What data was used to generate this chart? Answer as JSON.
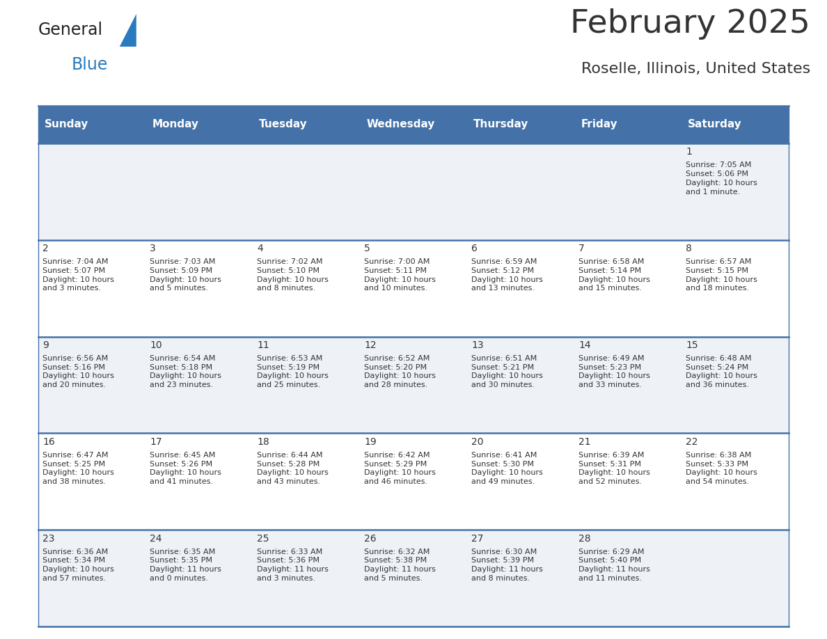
{
  "title": "February 2025",
  "subtitle": "Roselle, Illinois, United States",
  "days_of_week": [
    "Sunday",
    "Monday",
    "Tuesday",
    "Wednesday",
    "Thursday",
    "Friday",
    "Saturday"
  ],
  "header_bg": "#4472a8",
  "header_text_color": "#ffffff",
  "row_bg_odd": "#eef2f7",
  "row_bg_even": "#ffffff",
  "separator_color": "#4472a8",
  "text_color": "#333333",
  "calendar_data": [
    [
      "",
      "",
      "",
      "",
      "",
      "",
      "1\nSunrise: 7:05 AM\nSunset: 5:06 PM\nDaylight: 10 hours\nand 1 minute."
    ],
    [
      "2\nSunrise: 7:04 AM\nSunset: 5:07 PM\nDaylight: 10 hours\nand 3 minutes.",
      "3\nSunrise: 7:03 AM\nSunset: 5:09 PM\nDaylight: 10 hours\nand 5 minutes.",
      "4\nSunrise: 7:02 AM\nSunset: 5:10 PM\nDaylight: 10 hours\nand 8 minutes.",
      "5\nSunrise: 7:00 AM\nSunset: 5:11 PM\nDaylight: 10 hours\nand 10 minutes.",
      "6\nSunrise: 6:59 AM\nSunset: 5:12 PM\nDaylight: 10 hours\nand 13 minutes.",
      "7\nSunrise: 6:58 AM\nSunset: 5:14 PM\nDaylight: 10 hours\nand 15 minutes.",
      "8\nSunrise: 6:57 AM\nSunset: 5:15 PM\nDaylight: 10 hours\nand 18 minutes."
    ],
    [
      "9\nSunrise: 6:56 AM\nSunset: 5:16 PM\nDaylight: 10 hours\nand 20 minutes.",
      "10\nSunrise: 6:54 AM\nSunset: 5:18 PM\nDaylight: 10 hours\nand 23 minutes.",
      "11\nSunrise: 6:53 AM\nSunset: 5:19 PM\nDaylight: 10 hours\nand 25 minutes.",
      "12\nSunrise: 6:52 AM\nSunset: 5:20 PM\nDaylight: 10 hours\nand 28 minutes.",
      "13\nSunrise: 6:51 AM\nSunset: 5:21 PM\nDaylight: 10 hours\nand 30 minutes.",
      "14\nSunrise: 6:49 AM\nSunset: 5:23 PM\nDaylight: 10 hours\nand 33 minutes.",
      "15\nSunrise: 6:48 AM\nSunset: 5:24 PM\nDaylight: 10 hours\nand 36 minutes."
    ],
    [
      "16\nSunrise: 6:47 AM\nSunset: 5:25 PM\nDaylight: 10 hours\nand 38 minutes.",
      "17\nSunrise: 6:45 AM\nSunset: 5:26 PM\nDaylight: 10 hours\nand 41 minutes.",
      "18\nSunrise: 6:44 AM\nSunset: 5:28 PM\nDaylight: 10 hours\nand 43 minutes.",
      "19\nSunrise: 6:42 AM\nSunset: 5:29 PM\nDaylight: 10 hours\nand 46 minutes.",
      "20\nSunrise: 6:41 AM\nSunset: 5:30 PM\nDaylight: 10 hours\nand 49 minutes.",
      "21\nSunrise: 6:39 AM\nSunset: 5:31 PM\nDaylight: 10 hours\nand 52 minutes.",
      "22\nSunrise: 6:38 AM\nSunset: 5:33 PM\nDaylight: 10 hours\nand 54 minutes."
    ],
    [
      "23\nSunrise: 6:36 AM\nSunset: 5:34 PM\nDaylight: 10 hours\nand 57 minutes.",
      "24\nSunrise: 6:35 AM\nSunset: 5:35 PM\nDaylight: 11 hours\nand 0 minutes.",
      "25\nSunrise: 6:33 AM\nSunset: 5:36 PM\nDaylight: 11 hours\nand 3 minutes.",
      "26\nSunrise: 6:32 AM\nSunset: 5:38 PM\nDaylight: 11 hours\nand 5 minutes.",
      "27\nSunrise: 6:30 AM\nSunset: 5:39 PM\nDaylight: 11 hours\nand 8 minutes.",
      "28\nSunrise: 6:29 AM\nSunset: 5:40 PM\nDaylight: 11 hours\nand 11 minutes.",
      ""
    ]
  ],
  "logo_text_general": "General",
  "logo_text_blue": "Blue",
  "logo_color_general": "#222222",
  "logo_color_blue": "#2a7abf",
  "logo_triangle_color": "#2a7abf",
  "title_fontsize": 34,
  "subtitle_fontsize": 16,
  "header_fontsize": 11,
  "day_num_fontsize": 10,
  "cell_text_fontsize": 8
}
